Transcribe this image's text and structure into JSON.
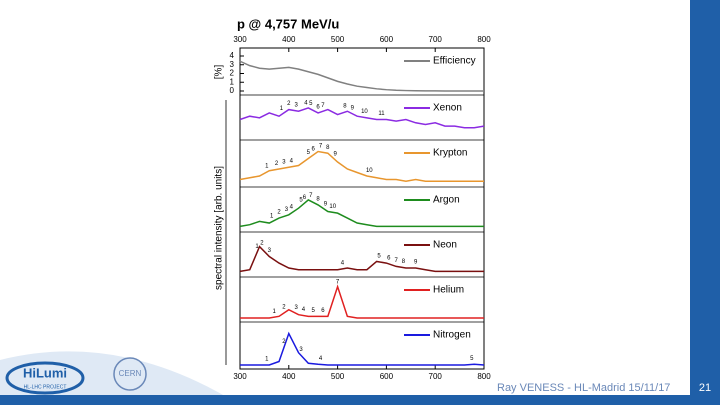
{
  "chart_data": {
    "type": "line",
    "title": "p @ 4,757 MeV/u",
    "y_label_efficiency": "[%]",
    "y_label": "spectral intensity [arb. units]",
    "xlim": [
      300,
      800
    ],
    "xticks": [
      300,
      400,
      500,
      600,
      700,
      800
    ],
    "x": [
      300,
      320,
      340,
      360,
      380,
      400,
      420,
      440,
      460,
      480,
      500,
      520,
      540,
      560,
      580,
      600,
      620,
      640,
      660,
      680,
      700,
      720,
      740,
      760,
      780,
      800
    ],
    "series": [
      {
        "name": "Efficiency",
        "color": "#808080",
        "ylim": [
          0,
          4
        ],
        "yticks": [
          0,
          1,
          2,
          3,
          4
        ],
        "values": [
          3.4,
          2.9,
          2.6,
          2.5,
          2.6,
          2.7,
          2.5,
          2.2,
          1.9,
          1.5,
          1.1,
          0.8,
          0.55,
          0.4,
          0.25,
          0.15,
          0.08,
          0.05,
          0.03,
          0.02,
          0.01,
          0,
          0,
          0,
          0,
          0
        ],
        "peaks": []
      },
      {
        "name": "Xenon",
        "color": "#8b2be2",
        "values": [
          0.5,
          0.6,
          0.55,
          0.7,
          0.6,
          0.8,
          0.75,
          0.85,
          0.7,
          0.8,
          0.65,
          0.75,
          0.6,
          0.55,
          0.5,
          0.5,
          0.45,
          0.5,
          0.4,
          0.35,
          0.4,
          0.3,
          0.3,
          0.25,
          0.25,
          0.3
        ],
        "peaks": [
          {
            "label": "1",
            "x": 385
          },
          {
            "label": "2",
            "x": 400
          },
          {
            "label": "3",
            "x": 415
          },
          {
            "label": "4",
            "x": 435
          },
          {
            "label": "5",
            "x": 445
          },
          {
            "label": "6",
            "x": 460
          },
          {
            "label": "7",
            "x": 470
          },
          {
            "label": "8",
            "x": 515
          },
          {
            "label": "9",
            "x": 530
          },
          {
            "label": "10",
            "x": 555
          },
          {
            "label": "11",
            "x": 590
          }
        ]
      },
      {
        "name": "Krypton",
        "color": "#e8962e",
        "values": [
          0.1,
          0.15,
          0.2,
          0.35,
          0.4,
          0.45,
          0.5,
          0.7,
          0.9,
          0.85,
          0.6,
          0.4,
          0.3,
          0.2,
          0.15,
          0.1,
          0.1,
          0.05,
          0.1,
          0.05,
          0.05,
          0.05,
          0.05,
          0.05,
          0.05,
          0.05
        ],
        "peaks": [
          {
            "label": "1",
            "x": 355
          },
          {
            "label": "2",
            "x": 375
          },
          {
            "label": "3",
            "x": 390
          },
          {
            "label": "4",
            "x": 405
          },
          {
            "label": "5",
            "x": 440
          },
          {
            "label": "6",
            "x": 450
          },
          {
            "label": "7",
            "x": 465
          },
          {
            "label": "8",
            "x": 480
          },
          {
            "label": "9",
            "x": 495
          },
          {
            "label": "10",
            "x": 565
          }
        ]
      },
      {
        "name": "Argon",
        "color": "#1e8c1e",
        "values": [
          0.05,
          0.1,
          0.2,
          0.15,
          0.3,
          0.4,
          0.6,
          0.85,
          0.7,
          0.5,
          0.45,
          0.3,
          0.15,
          0.1,
          0.05,
          0.05,
          0.05,
          0.05,
          0.05,
          0.05,
          0.05,
          0.05,
          0.05,
          0.05,
          0.05,
          0.05
        ],
        "peaks": [
          {
            "label": "1",
            "x": 365
          },
          {
            "label": "2",
            "x": 380
          },
          {
            "label": "3",
            "x": 395
          },
          {
            "label": "4",
            "x": 405
          },
          {
            "label": "5",
            "x": 425
          },
          {
            "label": "6",
            "x": 432
          },
          {
            "label": "7",
            "x": 445
          },
          {
            "label": "8",
            "x": 460
          },
          {
            "label": "9",
            "x": 475
          },
          {
            "label": "10",
            "x": 490
          }
        ]
      },
      {
        "name": "Neon",
        "color": "#7a1010",
        "values": [
          0.05,
          0.1,
          0.8,
          0.5,
          0.3,
          0.15,
          0.1,
          0.1,
          0.1,
          0.1,
          0.1,
          0.15,
          0.1,
          0.1,
          0.35,
          0.3,
          0.2,
          0.15,
          0.15,
          0.1,
          0.05,
          0.05,
          0.05,
          0.05,
          0.05,
          0.05
        ],
        "peaks": [
          {
            "label": "1",
            "x": 335
          },
          {
            "label": "2",
            "x": 345
          },
          {
            "label": "3",
            "x": 360
          },
          {
            "label": "4",
            "x": 510
          },
          {
            "label": "5",
            "x": 585
          },
          {
            "label": "6",
            "x": 605
          },
          {
            "label": "7",
            "x": 620
          },
          {
            "label": "8",
            "x": 635
          },
          {
            "label": "9",
            "x": 660
          }
        ]
      },
      {
        "name": "Helium",
        "color": "#e02020",
        "values": [
          0,
          0,
          0,
          0,
          0.05,
          0.25,
          0.1,
          0.05,
          0.05,
          0.05,
          0.95,
          0.05,
          0,
          0,
          0,
          0,
          0,
          0,
          0,
          0,
          0,
          0,
          0,
          0,
          0,
          0
        ],
        "peaks": [
          {
            "label": "1",
            "x": 370
          },
          {
            "label": "2",
            "x": 390
          },
          {
            "label": "3",
            "x": 415
          },
          {
            "label": "4",
            "x": 430
          },
          {
            "label": "5",
            "x": 450
          },
          {
            "label": "6",
            "x": 470
          },
          {
            "label": "7",
            "x": 500
          }
        ]
      },
      {
        "name": "Nitrogen",
        "color": "#1a1adf",
        "values": [
          0,
          0,
          0,
          0,
          0.1,
          0.9,
          0.35,
          0.05,
          0.02,
          0,
          0,
          0,
          0,
          0,
          0,
          0,
          0,
          0,
          0,
          0,
          0,
          0,
          0,
          0,
          0.02,
          0
        ],
        "peaks": [
          {
            "label": "1",
            "x": 355
          },
          {
            "label": "2",
            "x": 390
          },
          {
            "label": "3",
            "x": 425
          },
          {
            "label": "4",
            "x": 465
          },
          {
            "label": "5",
            "x": 775
          }
        ]
      }
    ]
  },
  "footer": {
    "credit": "Ray VENESS - HL-Madrid 15/11/17",
    "page": "21"
  },
  "logos": {
    "hilumi": "HiLumi",
    "project": "HL-LHC PROJECT",
    "cern": "CERN"
  }
}
